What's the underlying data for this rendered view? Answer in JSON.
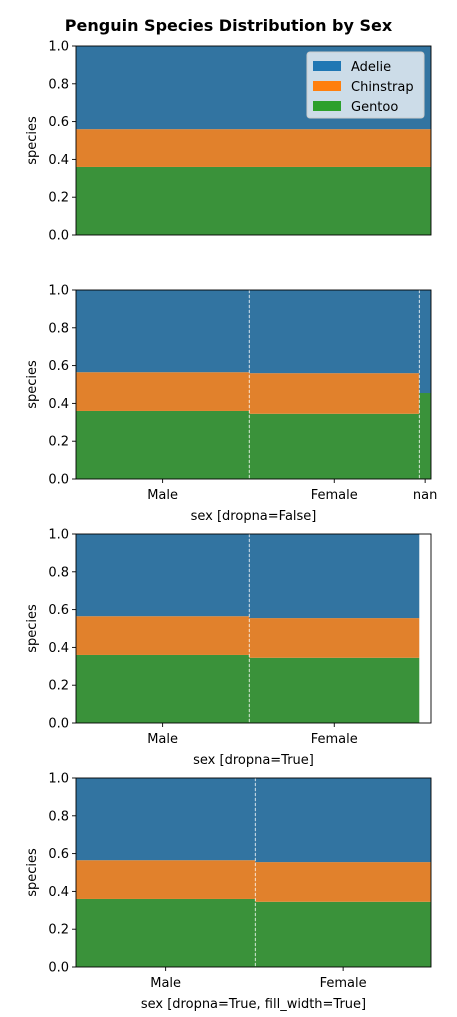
{
  "figure": {
    "title": "Penguin Species Distribution by Sex"
  },
  "legend": {
    "location": "upper right",
    "entries": [
      {
        "label": "Adelie",
        "color": "#1f77b4"
      },
      {
        "label": "Chinstrap",
        "color": "#ff7f0e"
      },
      {
        "label": "Gentoo",
        "color": "#2ca02c"
      }
    ]
  },
  "chart_data": [
    {
      "type": "area",
      "title": "",
      "xlabel": "",
      "ylabel": "species",
      "ylim": [
        0,
        1
      ],
      "yticks": [
        "0.0",
        "0.2",
        "0.4",
        "0.6",
        "0.8",
        "1.0"
      ],
      "categories": [],
      "widths": [
        1.0
      ],
      "boundaries": [
        0.36,
        0.56
      ],
      "total_width": 1.0,
      "grid": false,
      "legend": true
    },
    {
      "type": "area",
      "title": "",
      "xlabel": "sex [dropna=False]",
      "ylabel": "species",
      "ylim": [
        0,
        1
      ],
      "yticks": [
        "0.0",
        "0.2",
        "0.4",
        "0.6",
        "0.8",
        "1.0"
      ],
      "categories": [
        "Male",
        "Female",
        "nan"
      ],
      "widths": [
        0.488,
        0.479,
        0.033
      ],
      "boundaries": [
        [
          0.36,
          0.565
        ],
        [
          0.345,
          0.56
        ],
        [
          0.455,
          0.455
        ]
      ],
      "total_width": 1.0,
      "grid": false,
      "legend": false
    },
    {
      "type": "area",
      "title": "",
      "xlabel": "sex [dropna=True]",
      "ylabel": "species",
      "ylim": [
        0,
        1
      ],
      "yticks": [
        "0.0",
        "0.2",
        "0.4",
        "0.6",
        "0.8",
        "1.0"
      ],
      "categories": [
        "Male",
        "Female"
      ],
      "widths": [
        0.488,
        0.479
      ],
      "boundaries": [
        [
          0.36,
          0.565
        ],
        [
          0.345,
          0.555
        ]
      ],
      "total_width": 1.0,
      "grid": false,
      "legend": false
    },
    {
      "type": "area",
      "title": "",
      "xlabel": "sex [dropna=True, fill_width=True]",
      "ylabel": "species",
      "ylim": [
        0,
        1
      ],
      "yticks": [
        "0.0",
        "0.2",
        "0.4",
        "0.6",
        "0.8",
        "1.0"
      ],
      "categories": [
        "Male",
        "Female"
      ],
      "widths": [
        0.505,
        0.495
      ],
      "boundaries": [
        [
          0.36,
          0.565
        ],
        [
          0.345,
          0.555
        ]
      ],
      "total_width": 1.0,
      "grid": false,
      "legend": false
    }
  ]
}
